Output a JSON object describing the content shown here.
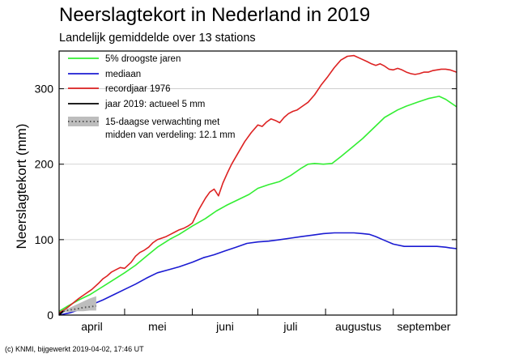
{
  "chart_data": {
    "type": "line",
    "title": "Neerslagtekort in Nederland in 2019",
    "subtitle": "Landelijk gemiddelde over 13 stations",
    "ylabel": "Neerslagtekort (mm)",
    "xlabel": "",
    "xlim": [
      91,
      273
    ],
    "ylim": [
      0,
      350
    ],
    "y_ticks": [
      0,
      100,
      200,
      300
    ],
    "x_month_starts": [
      91,
      121,
      152,
      182,
      213,
      244,
      274
    ],
    "x_tick_labels": [
      {
        "label": "april",
        "x": 106
      },
      {
        "label": "mei",
        "x": 136
      },
      {
        "label": "juni",
        "x": 167
      },
      {
        "label": "juli",
        "x": 197
      },
      {
        "label": "augustus",
        "x": 228
      },
      {
        "label": "september",
        "x": 258
      }
    ],
    "grid": "horizontal",
    "legend_position": "top-left",
    "series": [
      {
        "name": "5% droogste jaren",
        "color": "#33ee33",
        "style": "solid",
        "x": [
          91,
          95,
          100,
          105,
          110,
          115,
          121,
          126,
          131,
          136,
          142,
          146,
          152,
          158,
          163,
          168,
          173,
          178,
          182,
          187,
          192,
          197,
          202,
          205,
          208,
          212,
          216,
          220,
          225,
          230,
          235,
          240,
          246,
          250,
          255,
          260,
          265,
          268,
          270,
          273
        ],
        "values": [
          5,
          12,
          20,
          27,
          36,
          45,
          56,
          66,
          78,
          90,
          101,
          107,
          118,
          128,
          138,
          146,
          153,
          160,
          168,
          173,
          177,
          185,
          195,
          200,
          201,
          200,
          201,
          210,
          222,
          234,
          248,
          262,
          272,
          277,
          282,
          287,
          290,
          286,
          282,
          276
        ]
      },
      {
        "name": "mediaan",
        "color": "#1b1bd2",
        "style": "solid",
        "x": [
          91,
          96,
          101,
          106,
          111,
          116,
          121,
          126,
          131,
          136,
          141,
          146,
          152,
          157,
          162,
          167,
          172,
          177,
          182,
          187,
          192,
          197,
          202,
          207,
          212,
          217,
          222,
          226,
          230,
          233,
          236,
          240,
          244,
          249,
          254,
          259,
          264,
          268,
          270,
          273
        ],
        "values": [
          0,
          3,
          8,
          14,
          20,
          27,
          34,
          41,
          49,
          56,
          60,
          64,
          70,
          76,
          80,
          85,
          90,
          95,
          97,
          98,
          100,
          102,
          104,
          106,
          108,
          109,
          109,
          109,
          108,
          107,
          104,
          99,
          94,
          91,
          91,
          91,
          91,
          90,
          89,
          88
        ]
      },
      {
        "name": "recordjaar 1976",
        "color": "#dd2222",
        "style": "solid",
        "x": [
          91,
          94,
          97,
          100,
          103,
          106,
          109,
          111,
          113,
          115,
          117,
          119,
          121,
          124,
          126,
          128,
          130,
          132,
          134,
          136,
          138,
          140,
          142,
          144,
          146,
          148,
          150,
          152,
          155,
          158,
          160,
          162,
          164,
          166,
          168,
          170,
          173,
          176,
          179,
          182,
          184,
          186,
          188,
          190,
          192,
          194,
          196,
          198,
          200,
          202,
          205,
          208,
          211,
          214,
          217,
          220,
          223,
          226,
          229,
          232,
          234,
          236,
          238,
          240,
          242,
          244,
          246,
          248,
          250,
          252,
          254,
          256,
          258,
          260,
          262,
          264,
          266,
          268,
          270,
          273
        ],
        "values": [
          3,
          8,
          15,
          22,
          28,
          34,
          42,
          48,
          52,
          57,
          60,
          63,
          62,
          70,
          78,
          83,
          86,
          90,
          96,
          100,
          102,
          104,
          107,
          110,
          113,
          115,
          118,
          122,
          140,
          155,
          163,
          167,
          158,
          175,
          188,
          200,
          215,
          230,
          242,
          252,
          250,
          256,
          260,
          258,
          255,
          262,
          267,
          270,
          272,
          276,
          282,
          292,
          305,
          316,
          328,
          338,
          343,
          344,
          340,
          336,
          333,
          331,
          333,
          330,
          326,
          325,
          327,
          325,
          322,
          320,
          319,
          320,
          322,
          322,
          324,
          325,
          326,
          326,
          325,
          322
        ]
      },
      {
        "name": "jaar 2019: actueel 5 mm",
        "color": "#000000",
        "style": "solid",
        "x": [
          91,
          92,
          93
        ],
        "values": [
          0,
          3,
          5
        ]
      },
      {
        "name": "15-daagse verwachting met midden van verdeling: 12.1 mm",
        "color": "#aaaaaa",
        "style": "band",
        "x": [
          93,
          96,
          99,
          102,
          105,
          108
        ],
        "lower": [
          4,
          4,
          5,
          5,
          6,
          6
        ],
        "upper": [
          6,
          10,
          14,
          18,
          22,
          25
        ],
        "values": [
          5,
          7,
          8,
          10,
          11,
          12.1
        ]
      }
    ],
    "legend": [
      {
        "label": "5% droogste jaren",
        "color": "#33ee33",
        "kind": "line"
      },
      {
        "label": "mediaan",
        "color": "#1b1bd2",
        "kind": "line"
      },
      {
        "label": "recordjaar 1976",
        "color": "#dd2222",
        "kind": "line"
      },
      {
        "label": "jaar 2019: actueel 5 mm",
        "color": "#000000",
        "kind": "line"
      },
      {
        "label": "15-daagse verwachting met",
        "label2": "midden van verdeling: 12.1 mm",
        "color": "#aaaaaa",
        "kind": "band"
      }
    ]
  },
  "footer": {
    "credit": "(c) KNMI, bijgewerkt 2019-04-02, 17:46 UT"
  }
}
